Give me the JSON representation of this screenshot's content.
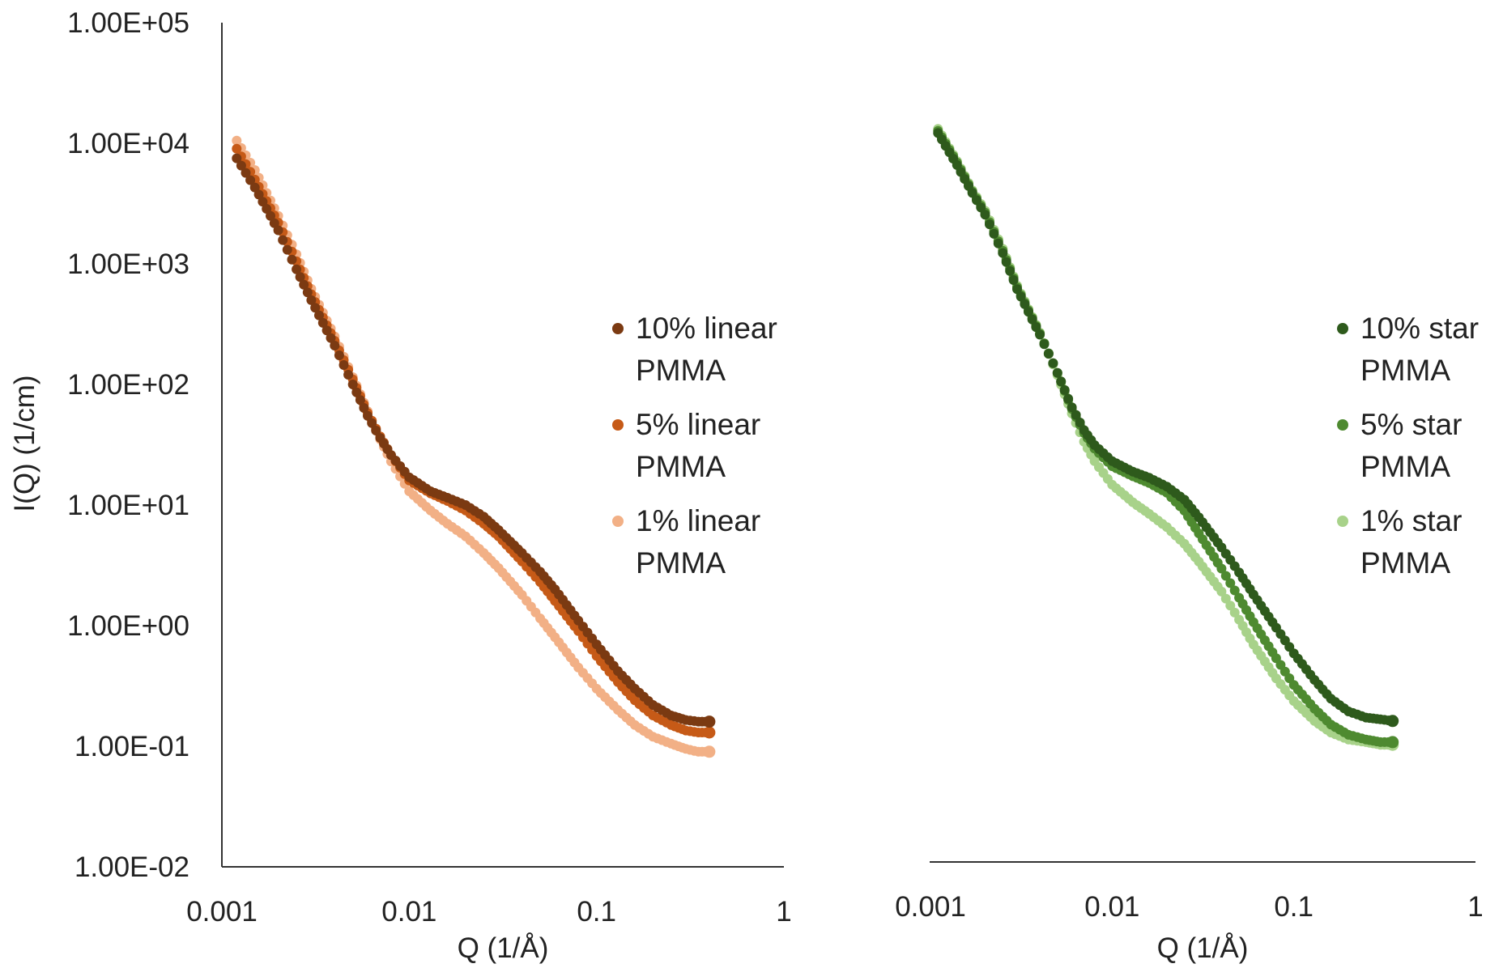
{
  "chart_data": [
    {
      "type": "scatter",
      "title": "",
      "xlabel": "Q (1/Å)",
      "ylabel": "I(Q) (1/cm)",
      "x_scale": "log",
      "y_scale": "log",
      "xlim": [
        0.001,
        1
      ],
      "ylim": [
        0.01,
        100000
      ],
      "x_ticks": [
        "0.001",
        "0.01",
        "0.1",
        "1"
      ],
      "y_ticks": [
        "1.00E-02",
        "1.00E-01",
        "1.00E+00",
        "1.00E+01",
        "1.00E+02",
        "1.00E+03",
        "1.00E+04",
        "1.00E+05"
      ],
      "grid": false,
      "legend_position": "right",
      "series": [
        {
          "name_lines": [
            "10% linear",
            "PMMA"
          ],
          "color": "#7B3A12",
          "points": [
            [
              0.0012,
              7500
            ],
            [
              0.0015,
              4300
            ],
            [
              0.002,
              1900
            ],
            [
              0.0025,
              900
            ],
            [
              0.003,
              500
            ],
            [
              0.004,
              210
            ],
            [
              0.005,
              100
            ],
            [
              0.006,
              55
            ],
            [
              0.007,
              36
            ],
            [
              0.008,
              26
            ],
            [
              0.01,
              17
            ],
            [
              0.013,
              13
            ],
            [
              0.016,
              11.5
            ],
            [
              0.02,
              10
            ],
            [
              0.025,
              8
            ],
            [
              0.03,
              6.2
            ],
            [
              0.04,
              4
            ],
            [
              0.05,
              2.8
            ],
            [
              0.06,
              2
            ],
            [
              0.08,
              1.1
            ],
            [
              0.1,
              0.7
            ],
            [
              0.13,
              0.42
            ],
            [
              0.16,
              0.3
            ],
            [
              0.2,
              0.22
            ],
            [
              0.25,
              0.18
            ],
            [
              0.3,
              0.165
            ],
            [
              0.35,
              0.16
            ],
            [
              0.4,
              0.16
            ]
          ]
        },
        {
          "name_lines": [
            "5% linear",
            "PMMA"
          ],
          "color": "#C65A17",
          "points": [
            [
              0.0012,
              9000
            ],
            [
              0.0015,
              5000
            ],
            [
              0.002,
              2200
            ],
            [
              0.0025,
              1050
            ],
            [
              0.003,
              560
            ],
            [
              0.004,
              230
            ],
            [
              0.005,
              110
            ],
            [
              0.006,
              58
            ],
            [
              0.007,
              37
            ],
            [
              0.008,
              26
            ],
            [
              0.01,
              16
            ],
            [
              0.013,
              12.5
            ],
            [
              0.016,
              10.8
            ],
            [
              0.02,
              9
            ],
            [
              0.025,
              7
            ],
            [
              0.03,
              5.5
            ],
            [
              0.04,
              3.4
            ],
            [
              0.05,
              2.3
            ],
            [
              0.06,
              1.6
            ],
            [
              0.08,
              0.9
            ],
            [
              0.1,
              0.56
            ],
            [
              0.13,
              0.34
            ],
            [
              0.16,
              0.24
            ],
            [
              0.2,
              0.18
            ],
            [
              0.25,
              0.15
            ],
            [
              0.3,
              0.135
            ],
            [
              0.35,
              0.13
            ],
            [
              0.4,
              0.13
            ]
          ]
        },
        {
          "name_lines": [
            "1% linear",
            "PMMA"
          ],
          "color": "#F2B086",
          "points": [
            [
              0.0012,
              10500
            ],
            [
              0.0015,
              6000
            ],
            [
              0.002,
              2500
            ],
            [
              0.0025,
              1200
            ],
            [
              0.003,
              620
            ],
            [
              0.004,
              250
            ],
            [
              0.005,
              115
            ],
            [
              0.006,
              60
            ],
            [
              0.007,
              35
            ],
            [
              0.008,
              23
            ],
            [
              0.01,
              13
            ],
            [
              0.013,
              9
            ],
            [
              0.016,
              7
            ],
            [
              0.02,
              5.5
            ],
            [
              0.025,
              4
            ],
            [
              0.03,
              3
            ],
            [
              0.04,
              1.8
            ],
            [
              0.05,
              1.15
            ],
            [
              0.06,
              0.8
            ],
            [
              0.08,
              0.45
            ],
            [
              0.1,
              0.3
            ],
            [
              0.13,
              0.2
            ],
            [
              0.16,
              0.15
            ],
            [
              0.2,
              0.12
            ],
            [
              0.25,
              0.105
            ],
            [
              0.3,
              0.095
            ],
            [
              0.35,
              0.09
            ],
            [
              0.4,
              0.09
            ]
          ]
        }
      ]
    },
    {
      "type": "scatter",
      "title": "",
      "xlabel": "Q (1/Å)",
      "ylabel": "",
      "x_scale": "log",
      "y_scale": "log",
      "xlim": [
        0.001,
        1
      ],
      "ylim": [
        0.01,
        100000
      ],
      "x_ticks": [
        "0.001",
        "0.01",
        "0.1",
        "1"
      ],
      "y_ticks": [],
      "grid": false,
      "legend_position": "right",
      "series": [
        {
          "name_lines": [
            "10% star",
            "PMMA"
          ],
          "color": "#2E5A1C",
          "points": [
            [
              0.0011,
              12000
            ],
            [
              0.0014,
              6500
            ],
            [
              0.0017,
              3800
            ],
            [
              0.002,
              2500
            ],
            [
              0.0025,
              1200
            ],
            [
              0.003,
              600
            ],
            [
              0.004,
              250
            ],
            [
              0.005,
              120
            ],
            [
              0.006,
              62
            ],
            [
              0.007,
              40
            ],
            [
              0.008,
              30
            ],
            [
              0.01,
              22
            ],
            [
              0.013,
              18
            ],
            [
              0.016,
              16
            ],
            [
              0.02,
              13.5
            ],
            [
              0.025,
              10.5
            ],
            [
              0.03,
              7.5
            ],
            [
              0.04,
              4.2
            ],
            [
              0.05,
              2.6
            ],
            [
              0.06,
              1.7
            ],
            [
              0.08,
              0.9
            ],
            [
              0.1,
              0.55
            ],
            [
              0.13,
              0.33
            ],
            [
              0.16,
              0.23
            ],
            [
              0.2,
              0.18
            ],
            [
              0.25,
              0.16
            ],
            [
              0.3,
              0.155
            ],
            [
              0.35,
              0.15
            ]
          ]
        },
        {
          "name_lines": [
            "5% star",
            "PMMA"
          ],
          "color": "#4E8A30",
          "points": [
            [
              0.0011,
              12500
            ],
            [
              0.0014,
              6800
            ],
            [
              0.0017,
              3900
            ],
            [
              0.002,
              2600
            ],
            [
              0.0025,
              1250
            ],
            [
              0.003,
              620
            ],
            [
              0.004,
              255
            ],
            [
              0.005,
              120
            ],
            [
              0.006,
              60
            ],
            [
              0.007,
              38
            ],
            [
              0.008,
              28
            ],
            [
              0.01,
              20
            ],
            [
              0.013,
              16.5
            ],
            [
              0.016,
              14.5
            ],
            [
              0.02,
              12
            ],
            [
              0.025,
              8.5
            ],
            [
              0.03,
              5.5
            ],
            [
              0.04,
              2.8
            ],
            [
              0.05,
              1.6
            ],
            [
              0.06,
              1.0
            ],
            [
              0.08,
              0.5
            ],
            [
              0.1,
              0.3
            ],
            [
              0.13,
              0.19
            ],
            [
              0.16,
              0.14
            ],
            [
              0.2,
              0.115
            ],
            [
              0.25,
              0.105
            ],
            [
              0.3,
              0.1
            ],
            [
              0.35,
              0.1
            ]
          ]
        },
        {
          "name_lines": [
            "1% star",
            "PMMA"
          ],
          "color": "#A8D28A",
          "points": [
            [
              0.0011,
              13000
            ],
            [
              0.0014,
              7000
            ],
            [
              0.0017,
              4000
            ],
            [
              0.002,
              2700
            ],
            [
              0.0025,
              1300
            ],
            [
              0.003,
              640
            ],
            [
              0.004,
              260
            ],
            [
              0.005,
              115
            ],
            [
              0.006,
              55
            ],
            [
              0.007,
              32
            ],
            [
              0.008,
              22
            ],
            [
              0.01,
              14
            ],
            [
              0.013,
              10
            ],
            [
              0.016,
              8
            ],
            [
              0.02,
              6.2
            ],
            [
              0.025,
              4.5
            ],
            [
              0.03,
              3.2
            ],
            [
              0.04,
              1.8
            ],
            [
              0.05,
              1.05
            ],
            [
              0.06,
              0.65
            ],
            [
              0.08,
              0.34
            ],
            [
              0.1,
              0.22
            ],
            [
              0.13,
              0.15
            ],
            [
              0.16,
              0.12
            ],
            [
              0.2,
              0.105
            ],
            [
              0.25,
              0.1
            ],
            [
              0.3,
              0.095
            ],
            [
              0.35,
              0.095
            ]
          ]
        }
      ]
    }
  ]
}
